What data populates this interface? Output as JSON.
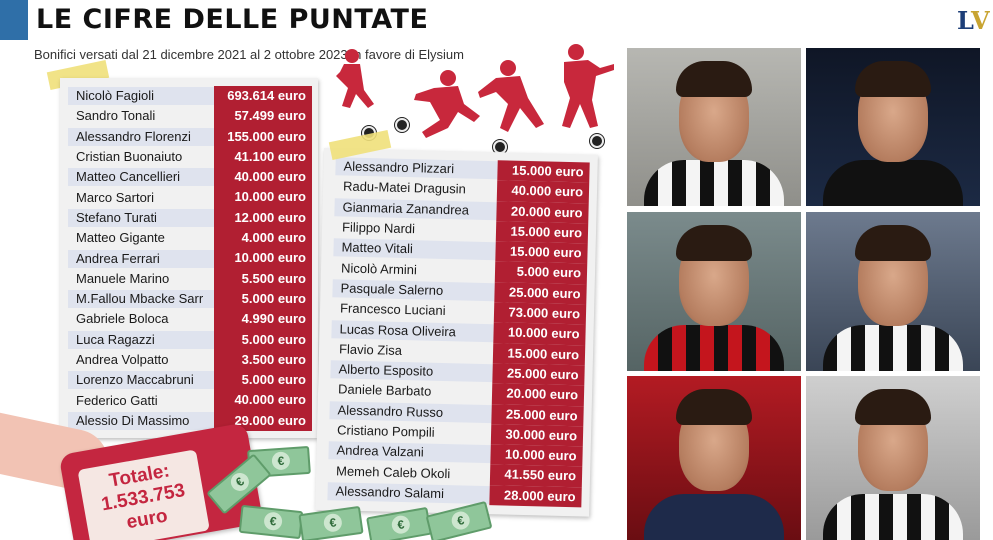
{
  "header": {
    "title": "LE CIFRE DELLE PUNTATE",
    "subtitle": "Bonifici versati dal 21 dicembre 2021 al 2 ottobre 2023 in favore di Elysium",
    "logo_text": "LV"
  },
  "list_left": [
    {
      "name": "Nicolò Fagioli",
      "amount": "693.614 euro"
    },
    {
      "name": "Sandro Tonali",
      "amount": "57.499 euro"
    },
    {
      "name": "Alessandro Florenzi",
      "amount": "155.000 euro"
    },
    {
      "name": "Cristian Buonaiuto",
      "amount": "41.100 euro"
    },
    {
      "name": "Matteo Cancellieri",
      "amount": "40.000 euro"
    },
    {
      "name": "Marco Sartori",
      "amount": "10.000 euro"
    },
    {
      "name": "Stefano Turati",
      "amount": "12.000 euro"
    },
    {
      "name": "Matteo Gigante",
      "amount": "4.000 euro"
    },
    {
      "name": "Andrea Ferrari",
      "amount": "10.000 euro"
    },
    {
      "name": "Manuele Marino",
      "amount": "5.500 euro"
    },
    {
      "name": "M.Fallou Mbacke Sarr",
      "amount": "5.000 euro"
    },
    {
      "name": "Gabriele Boloca",
      "amount": "4.990 euro"
    },
    {
      "name": "Luca Ragazzi",
      "amount": "5.000 euro"
    },
    {
      "name": "Andrea Volpatto",
      "amount": "3.500 euro"
    },
    {
      "name": "Lorenzo Maccabruni",
      "amount": "5.000 euro"
    },
    {
      "name": "Federico Gatti",
      "amount": "40.000 euro"
    },
    {
      "name": "Alessio Di Massimo",
      "amount": "29.000 euro"
    }
  ],
  "list_right": [
    {
      "name": "Alessandro Plizzari",
      "amount": "15.000 euro"
    },
    {
      "name": "Radu-Matei Dragusin",
      "amount": "40.000 euro"
    },
    {
      "name": "Gianmaria Zanandrea",
      "amount": "20.000 euro"
    },
    {
      "name": "Filippo Nardi",
      "amount": "15.000 euro"
    },
    {
      "name": "Matteo Vitali",
      "amount": "15.000 euro"
    },
    {
      "name": "Nicolò Armini",
      "amount": "5.000 euro"
    },
    {
      "name": "Pasquale Salerno",
      "amount": "25.000 euro"
    },
    {
      "name": "Francesco Luciani",
      "amount": "73.000 euro"
    },
    {
      "name": "Lucas Rosa  Oliveira",
      "amount": "10.000 euro"
    },
    {
      "name": "Flavio Zisa",
      "amount": "15.000 euro"
    },
    {
      "name": "Alberto Esposito",
      "amount": "25.000 euro"
    },
    {
      "name": "Daniele Barbato",
      "amount": "20.000 euro"
    },
    {
      "name": "Alessandro Russo",
      "amount": "25.000 euro"
    },
    {
      "name": "Cristiano Pompili",
      "amount": "30.000 euro"
    },
    {
      "name": "Andrea Valzani",
      "amount": "10.000 euro"
    },
    {
      "name": "Memeh Caleb Okoli",
      "amount": "41.550 euro"
    },
    {
      "name": "Alessandro Salami",
      "amount": "28.000 euro"
    }
  ],
  "total": {
    "label": "Totale:",
    "value": "1.533.753",
    "unit": "euro"
  },
  "colors": {
    "accent_blue": "#2f6fa8",
    "amount_red": "#b11f32",
    "row_stripe": "#dfe3ee",
    "tablet_red": "#c42640"
  },
  "icons": [
    "football-player-silhouette-icon",
    "football-ball-icon",
    "euro-banknote-icon",
    "hand-icon"
  ]
}
